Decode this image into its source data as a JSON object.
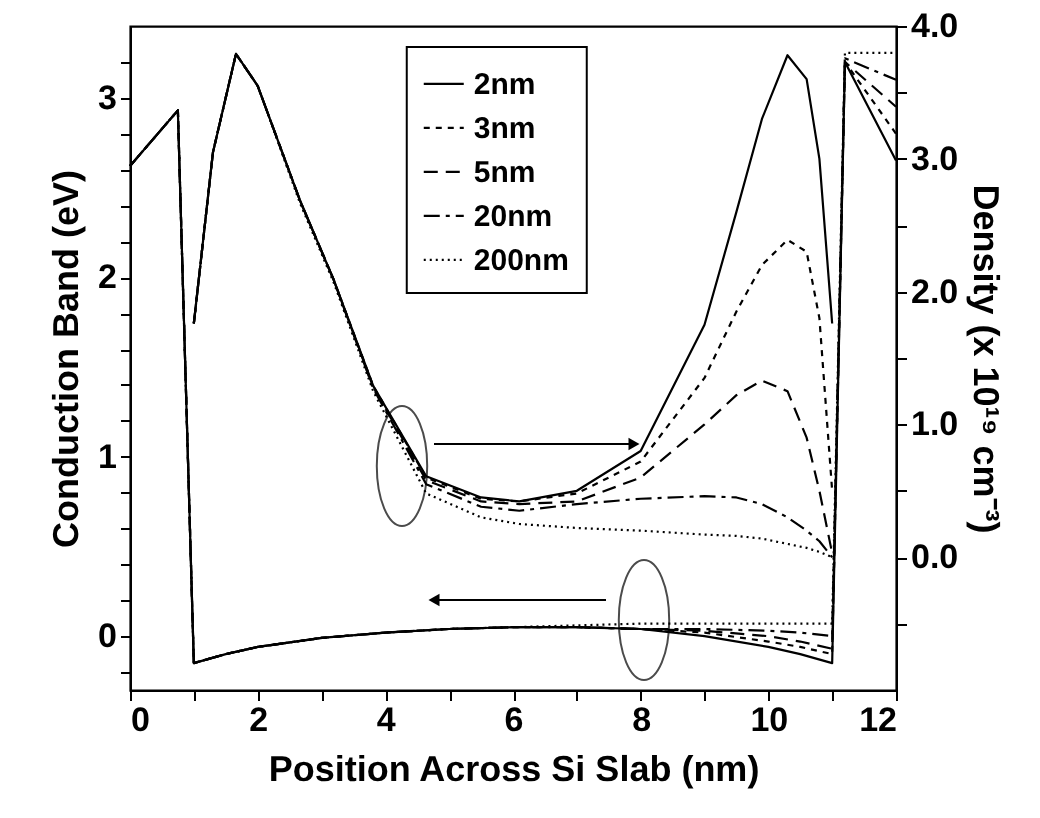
{
  "chart_data": {
    "type": "line",
    "xlabel": "Position Across Si Slab (nm)",
    "ylabel": "Conduction Band (eV)",
    "y2label": "Density (x 10¹⁹ cm⁻³)",
    "xlim": [
      0,
      12
    ],
    "xticks": [
      0,
      {
        "value": 1,
        "label": null
      },
      2,
      {
        "value": 3,
        "label": null
      },
      4,
      {
        "value": 5,
        "label": null
      },
      6,
      {
        "value": 7,
        "label": null
      },
      8,
      {
        "value": 9,
        "label": null
      },
      10,
      {
        "value": 11,
        "label": null
      },
      12
    ],
    "ylim": [
      -0.3,
      3.4
    ],
    "yticks": [
      {
        "value": -0.2,
        "label": null
      },
      0,
      {
        "value": 0.2,
        "label": null
      },
      {
        "value": 0.4,
        "label": null
      },
      {
        "value": 0.6,
        "label": null
      },
      {
        "value": 0.8,
        "label": null
      },
      1,
      {
        "value": 1.2,
        "label": null
      },
      {
        "value": 1.4,
        "label": null
      },
      {
        "value": 1.6,
        "label": null
      },
      {
        "value": 1.8,
        "label": null
      },
      2,
      {
        "value": 2.2,
        "label": null
      },
      {
        "value": 2.4,
        "label": null
      },
      {
        "value": 2.6,
        "label": null
      },
      {
        "value": 2.8,
        "label": null
      },
      3,
      {
        "value": 3.2,
        "label": null
      }
    ],
    "y2lim": [
      -1.0,
      4.0
    ],
    "y2ticks": [
      {
        "value": -0.5,
        "label": null
      },
      {
        "value": 0,
        "label": "0.0"
      },
      {
        "value": 0.5,
        "label": null
      },
      {
        "value": 1,
        "label": "1.0"
      },
      {
        "value": 1.5,
        "label": null
      },
      {
        "value": 2,
        "label": "2.0"
      },
      {
        "value": 2.5,
        "label": null
      },
      {
        "value": 3,
        "label": "3.0"
      },
      {
        "value": 3.5,
        "label": null
      },
      {
        "value": 4,
        "label": "4.0"
      }
    ],
    "grid": false,
    "legend": "top",
    "marker": "none",
    "series": [
      {
        "name": "2nm",
        "color": "#000000",
        "line_style": "solid",
        "axis": "y",
        "x": [
          0,
          0.75,
          1.0,
          1.5,
          2,
          3,
          4,
          5,
          6,
          7,
          8,
          9,
          10,
          10.5,
          11.0,
          11.2,
          12
        ],
        "values": [
          2.62,
          2.93,
          -0.15,
          -0.1,
          -0.06,
          -0.01,
          0.02,
          0.04,
          0.05,
          0.05,
          0.04,
          0.0,
          -0.06,
          -0.1,
          -0.15,
          3.2,
          2.65
        ]
      },
      {
        "name": "3nm",
        "color": "#000000",
        "line_style": "dashed",
        "axis": "y",
        "x": [
          0,
          0.75,
          1.0,
          1.5,
          2,
          3,
          4,
          5,
          6,
          7,
          8,
          9,
          10,
          10.5,
          11.0,
          11.2,
          12
        ],
        "values": [
          2.62,
          2.93,
          -0.15,
          -0.1,
          -0.06,
          -0.01,
          0.02,
          0.04,
          0.05,
          0.05,
          0.04,
          0.02,
          -0.03,
          -0.06,
          -0.1,
          3.2,
          2.8
        ]
      },
      {
        "name": "5nm",
        "color": "#000000",
        "line_style": "dashed",
        "axis": "y",
        "x": [
          0,
          0.75,
          1.0,
          1.5,
          2,
          3,
          4,
          5,
          6,
          7,
          8,
          9,
          10,
          10.5,
          11.0,
          11.2,
          12
        ],
        "values": [
          2.62,
          2.93,
          -0.15,
          -0.1,
          -0.06,
          -0.01,
          0.02,
          0.04,
          0.05,
          0.05,
          0.04,
          0.03,
          0.0,
          -0.03,
          -0.07,
          3.2,
          2.95
        ]
      },
      {
        "name": "20nm",
        "color": "#000000",
        "line_style": "dashed",
        "axis": "y",
        "x": [
          0,
          0.75,
          1.0,
          1.5,
          2,
          3,
          4,
          5,
          6,
          7,
          8,
          9,
          10,
          10.5,
          11.0,
          11.2,
          12
        ],
        "values": [
          2.62,
          2.93,
          -0.15,
          -0.1,
          -0.06,
          -0.01,
          0.02,
          0.04,
          0.05,
          0.05,
          0.04,
          0.04,
          0.03,
          0.02,
          0.0,
          3.22,
          3.1
        ]
      },
      {
        "name": "200nm",
        "color": "#000000",
        "line_style": "dotted",
        "axis": "y",
        "x": [
          0,
          0.75,
          1.0,
          1.5,
          2,
          3,
          4,
          5,
          6,
          7,
          8,
          9,
          10,
          10.5,
          11.0,
          11.2,
          12
        ],
        "values": [
          2.62,
          2.93,
          -0.15,
          -0.1,
          -0.06,
          -0.01,
          0.02,
          0.04,
          0.05,
          0.06,
          0.07,
          0.07,
          0.07,
          0.07,
          0.07,
          3.25,
          3.25
        ]
      },
      {
        "color": "#000000",
        "line_style": "solid",
        "axis": "y2",
        "x": [
          1.0,
          1.3,
          1.66,
          2.0,
          2.66,
          3.19,
          3.81,
          4.64,
          5.5,
          6.1,
          7,
          8,
          9,
          9.5,
          9.9,
          10.3,
          10.6,
          10.8,
          11.0
        ],
        "values": [
          1.76,
          3.05,
          3.79,
          3.55,
          2.69,
          2.09,
          1.29,
          0.61,
          0.45,
          0.42,
          0.5,
          0.8,
          1.75,
          2.6,
          3.3,
          3.78,
          3.6,
          3.0,
          1.76
        ]
      },
      {
        "color": "#000000",
        "line_style": "dashed",
        "axis": "y2",
        "x": [
          1.0,
          1.3,
          1.66,
          2.0,
          2.66,
          3.19,
          3.81,
          4.64,
          5.5,
          6.1,
          7,
          8,
          9,
          9.5,
          9.9,
          10.3,
          10.6,
          10.8,
          11.0
        ],
        "values": [
          1.76,
          3.05,
          3.79,
          3.55,
          2.69,
          2.09,
          1.29,
          0.6,
          0.44,
          0.42,
          0.48,
          0.72,
          1.35,
          1.85,
          2.2,
          2.39,
          2.3,
          1.8,
          0.5
        ]
      },
      {
        "color": "#000000",
        "line_style": "dashed",
        "axis": "y2",
        "x": [
          1.0,
          1.3,
          1.66,
          2.0,
          2.66,
          3.19,
          3.81,
          4.64,
          5.5,
          6.1,
          7,
          8,
          9,
          9.5,
          9.9,
          10.3,
          10.6,
          10.8,
          11.0
        ],
        "values": [
          1.76,
          3.05,
          3.79,
          3.55,
          2.69,
          2.09,
          1.28,
          0.58,
          0.42,
          0.4,
          0.42,
          0.6,
          1.0,
          1.22,
          1.33,
          1.25,
          0.9,
          0.5,
          0.03
        ]
      },
      {
        "color": "#000000",
        "line_style": "dashed",
        "axis": "y2",
        "x": [
          1.0,
          1.3,
          1.66,
          2.0,
          2.66,
          3.19,
          3.81,
          4.64,
          5.5,
          6.1,
          7,
          8,
          9,
          9.5,
          9.9,
          10.3,
          10.6,
          10.8,
          11.0
        ],
        "values": [
          1.76,
          3.05,
          3.79,
          3.55,
          2.69,
          2.09,
          1.27,
          0.55,
          0.38,
          0.35,
          0.4,
          0.44,
          0.46,
          0.45,
          0.4,
          0.3,
          0.2,
          0.12,
          0.0
        ]
      },
      {
        "color": "#000000",
        "line_style": "dotted",
        "axis": "y2",
        "x": [
          1.0,
          1.3,
          1.66,
          2.0,
          2.66,
          3.19,
          3.81,
          4.64,
          5.5,
          6.1,
          7,
          8,
          9,
          9.5,
          9.9,
          10.3,
          10.6,
          10.8,
          11.0
        ],
        "values": [
          1.76,
          3.05,
          3.79,
          3.55,
          2.67,
          2.07,
          1.25,
          0.48,
          0.3,
          0.25,
          0.22,
          0.2,
          0.17,
          0.16,
          0.14,
          0.1,
          0.07,
          0.04,
          0.0
        ]
      }
    ]
  }
}
